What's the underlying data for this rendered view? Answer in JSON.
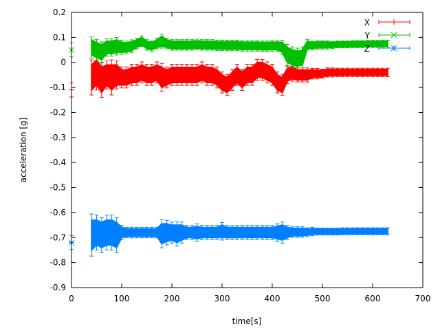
{
  "chart_data": {
    "type": "line",
    "title": "",
    "xlabel": "time[s]",
    "ylabel": "acceleration [g]",
    "xlim": [
      0,
      700
    ],
    "ylim": [
      -0.9,
      0.2
    ],
    "xticks": [
      "0",
      "100",
      "200",
      "300",
      "400",
      "500",
      "600",
      "700"
    ],
    "yticks": [
      "0.2",
      "0.1",
      "0",
      "-0.1",
      "-0.2",
      "-0.3",
      "-0.4",
      "-0.5",
      "-0.6",
      "-0.7",
      "-0.8",
      "-0.9"
    ],
    "grid": false,
    "legend_position": "top-right",
    "error_bars": true,
    "x": [
      0,
      40,
      50,
      60,
      70,
      80,
      90,
      100,
      110,
      120,
      130,
      140,
      150,
      160,
      170,
      180,
      190,
      200,
      210,
      220,
      230,
      240,
      250,
      260,
      270,
      280,
      290,
      300,
      310,
      320,
      330,
      340,
      350,
      360,
      370,
      380,
      390,
      400,
      410,
      420,
      430,
      440,
      450,
      460,
      470,
      480,
      490,
      500,
      510,
      520,
      530,
      540,
      550,
      560,
      570,
      580,
      590,
      600,
      610,
      620,
      630
    ],
    "series": [
      {
        "name": "X",
        "color": "#ff0000",
        "marker": "plus",
        "values": [
          -0.11,
          -0.06,
          -0.04,
          -0.07,
          -0.05,
          -0.06,
          -0.05,
          -0.06,
          -0.06,
          -0.05,
          -0.05,
          -0.04,
          -0.05,
          -0.05,
          -0.04,
          -0.06,
          -0.06,
          -0.05,
          -0.05,
          -0.05,
          -0.05,
          -0.05,
          -0.05,
          -0.04,
          -0.05,
          -0.05,
          -0.06,
          -0.08,
          -0.09,
          -0.07,
          -0.05,
          -0.07,
          -0.05,
          -0.05,
          -0.03,
          -0.03,
          -0.04,
          -0.05,
          -0.08,
          -0.09,
          -0.05,
          -0.04,
          -0.05,
          -0.05,
          -0.05,
          -0.045,
          -0.045,
          -0.045,
          -0.04,
          -0.04,
          -0.04,
          -0.04,
          -0.04,
          -0.04,
          -0.04,
          -0.04,
          -0.04,
          -0.04,
          -0.04,
          -0.04,
          -0.04
        ],
        "errors": [
          0.02,
          0.05,
          0.05,
          0.05,
          0.04,
          0.05,
          0.04,
          0.03,
          0.03,
          0.03,
          0.03,
          0.03,
          0.03,
          0.03,
          0.03,
          0.04,
          0.03,
          0.03,
          0.03,
          0.03,
          0.03,
          0.03,
          0.03,
          0.03,
          0.03,
          0.03,
          0.03,
          0.03,
          0.03,
          0.03,
          0.03,
          0.03,
          0.03,
          0.03,
          0.03,
          0.03,
          0.03,
          0.03,
          0.03,
          0.03,
          0.025,
          0.025,
          0.02,
          0.02,
          0.02,
          0.015,
          0.015,
          0.013,
          0.013,
          0.013,
          0.012,
          0.012,
          0.012,
          0.012,
          0.012,
          0.012,
          0.012,
          0.012,
          0.012,
          0.012,
          0.012
        ]
      },
      {
        "name": "Y",
        "color": "#00c000",
        "marker": "cross",
        "values": [
          0.05,
          0.06,
          0.05,
          0.04,
          0.06,
          0.06,
          0.065,
          0.06,
          0.06,
          0.065,
          0.075,
          0.085,
          0.07,
          0.065,
          0.075,
          0.085,
          0.075,
          0.07,
          0.07,
          0.07,
          0.07,
          0.07,
          0.072,
          0.07,
          0.07,
          0.07,
          0.068,
          0.068,
          0.068,
          0.068,
          0.068,
          0.066,
          0.066,
          0.066,
          0.066,
          0.065,
          0.065,
          0.066,
          0.066,
          0.06,
          0.03,
          0.02,
          0.015,
          0.02,
          0.07,
          0.068,
          0.07,
          0.07,
          0.07,
          0.07,
          0.072,
          0.072,
          0.072,
          0.073,
          0.073,
          0.073,
          0.074,
          0.074,
          0.074,
          0.075,
          0.075
        ],
        "errors": [
          0.02,
          0.03,
          0.03,
          0.03,
          0.025,
          0.025,
          0.025,
          0.02,
          0.018,
          0.018,
          0.015,
          0.015,
          0.015,
          0.015,
          0.015,
          0.02,
          0.015,
          0.015,
          0.015,
          0.015,
          0.015,
          0.015,
          0.015,
          0.015,
          0.015,
          0.015,
          0.015,
          0.015,
          0.015,
          0.015,
          0.015,
          0.015,
          0.015,
          0.015,
          0.015,
          0.015,
          0.015,
          0.015,
          0.015,
          0.02,
          0.03,
          0.03,
          0.03,
          0.03,
          0.015,
          0.012,
          0.012,
          0.012,
          0.012,
          0.01,
          0.01,
          0.01,
          0.01,
          0.01,
          0.01,
          0.01,
          0.01,
          0.01,
          0.01,
          0.01,
          0.01
        ]
      },
      {
        "name": "Z",
        "color": "#0080ff",
        "marker": "star",
        "values": [
          -0.72,
          -0.69,
          -0.68,
          -0.69,
          -0.68,
          -0.68,
          -0.69,
          -0.68,
          -0.68,
          -0.68,
          -0.68,
          -0.68,
          -0.68,
          -0.68,
          -0.68,
          -0.685,
          -0.68,
          -0.68,
          -0.685,
          -0.68,
          -0.68,
          -0.68,
          -0.68,
          -0.68,
          -0.68,
          -0.68,
          -0.68,
          -0.675,
          -0.68,
          -0.68,
          -0.68,
          -0.68,
          -0.68,
          -0.68,
          -0.68,
          -0.68,
          -0.68,
          -0.68,
          -0.68,
          -0.68,
          -0.68,
          -0.678,
          -0.678,
          -0.678,
          -0.678,
          -0.676,
          -0.676,
          -0.676,
          -0.676,
          -0.676,
          -0.676,
          -0.675,
          -0.675,
          -0.675,
          -0.675,
          -0.675,
          -0.675,
          -0.675,
          -0.675,
          -0.675,
          -0.675
        ],
        "errors": [
          0.02,
          0.06,
          0.05,
          0.05,
          0.05,
          0.05,
          0.05,
          0.02,
          0.015,
          0.015,
          0.015,
          0.015,
          0.015,
          0.015,
          0.015,
          0.04,
          0.035,
          0.03,
          0.035,
          0.03,
          0.02,
          0.02,
          0.025,
          0.02,
          0.02,
          0.02,
          0.02,
          0.025,
          0.02,
          0.02,
          0.02,
          0.02,
          0.02,
          0.02,
          0.02,
          0.02,
          0.02,
          0.02,
          0.025,
          0.03,
          0.02,
          0.015,
          0.015,
          0.015,
          0.012,
          0.012,
          0.01,
          0.01,
          0.01,
          0.01,
          0.01,
          0.01,
          0.01,
          0.01,
          0.01,
          0.01,
          0.01,
          0.01,
          0.01,
          0.01,
          0.01
        ]
      }
    ]
  }
}
